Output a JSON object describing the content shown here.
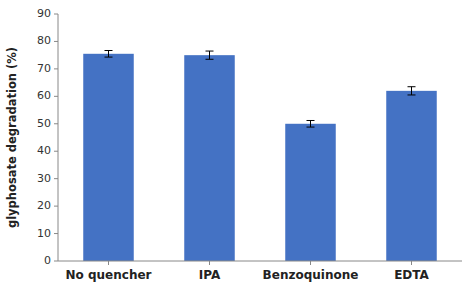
{
  "chart_data": {
    "type": "bar",
    "categories": [
      "No quencher",
      "IPA",
      "Benzoquinone",
      "EDTA"
    ],
    "values": [
      75.5,
      75.0,
      50.0,
      62.0
    ],
    "errors": [
      1.2,
      1.5,
      1.2,
      1.5
    ],
    "color": "#4472C4",
    "ylabel": "glyphosate degradation (%)",
    "ylim": [
      0,
      90
    ],
    "yticks": [
      0,
      10,
      20,
      30,
      40,
      50,
      60,
      70,
      80,
      90
    ],
    "grid": false
  }
}
